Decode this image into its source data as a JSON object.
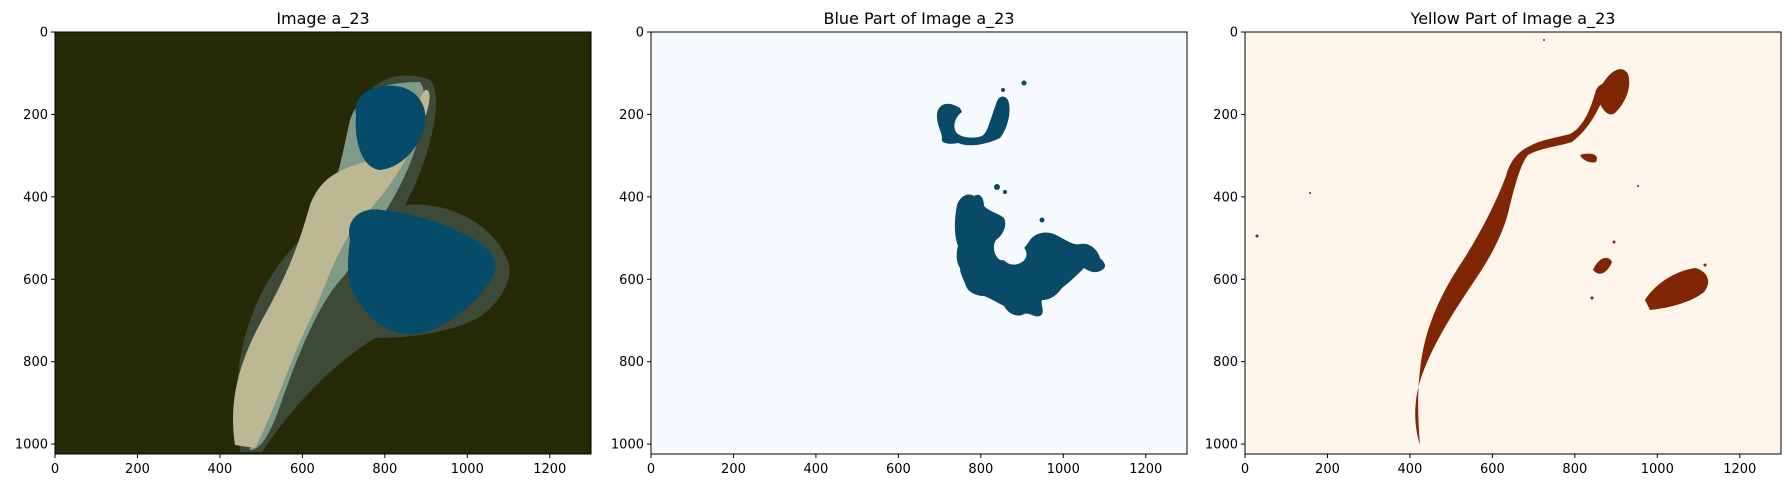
{
  "chart_data": [
    {
      "type": "image",
      "title": "Image a_23",
      "xlim": [
        0,
        1300
      ],
      "ylim": [
        1024,
        0
      ],
      "xticks": [
        0,
        200,
        400,
        600,
        800,
        1000,
        1200
      ],
      "yticks": [
        0,
        200,
        400,
        600,
        800,
        1000
      ],
      "colors": {
        "background": "#272a07",
        "blue": "#054b6a",
        "yellow": "#bdb793",
        "sage": "#7f9a85",
        "dark_halo": "#3d4a38"
      }
    },
    {
      "type": "image",
      "title": "Blue Part of Image a_23",
      "xlim": [
        0,
        1300
      ],
      "ylim": [
        1024,
        0
      ],
      "xticks": [
        0,
        200,
        400,
        600,
        800,
        1000,
        1200
      ],
      "yticks": [
        0,
        200,
        400,
        600,
        800,
        1000
      ],
      "colors": {
        "background": "#f7fbff",
        "mask": "#084a67"
      }
    },
    {
      "type": "image",
      "title": "Yellow Part of Image a_23",
      "xlim": [
        0,
        1300
      ],
      "ylim": [
        1024,
        0
      ],
      "xticks": [
        0,
        200,
        400,
        600,
        800,
        1000,
        1200
      ],
      "yticks": [
        0,
        200,
        400,
        600,
        800,
        1000
      ],
      "colors": {
        "background": "#fff5eb",
        "mask": "#7f2704"
      }
    }
  ]
}
